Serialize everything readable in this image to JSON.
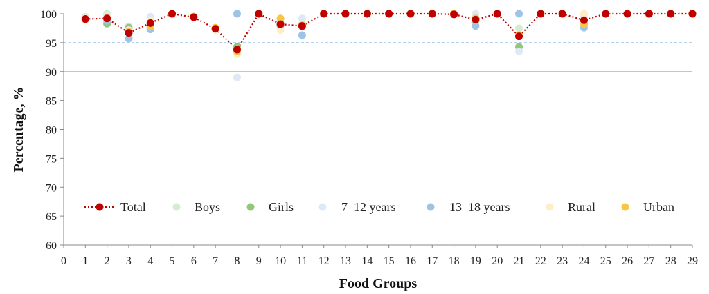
{
  "chart_data": {
    "type": "scatter",
    "title": "",
    "xlabel": "Food Groups",
    "ylabel": "Percentage, %",
    "xlim": [
      0,
      29
    ],
    "ylim": [
      60,
      100
    ],
    "x_ticks": [
      0,
      1,
      2,
      3,
      4,
      5,
      6,
      7,
      8,
      9,
      10,
      11,
      12,
      13,
      14,
      15,
      16,
      17,
      18,
      19,
      20,
      21,
      22,
      23,
      24,
      25,
      26,
      27,
      28,
      29
    ],
    "y_ticks": [
      60,
      65,
      70,
      75,
      80,
      85,
      90,
      95,
      100
    ],
    "reference_lines": [
      {
        "y": 95,
        "style": "dashed",
        "color": "#9dc3e6"
      },
      {
        "y": 90,
        "style": "solid",
        "color": "#9dc3e6"
      }
    ],
    "legend_position": "bottom-inside",
    "series": [
      {
        "name": "Boys",
        "color": "#d6ecd2",
        "x": [
          1,
          2,
          3,
          4,
          5,
          6,
          7,
          8,
          9,
          10,
          11,
          12,
          13,
          14,
          15,
          16,
          17,
          18,
          19,
          20,
          21,
          22,
          23,
          24,
          25,
          26,
          27,
          28,
          29
        ],
        "values": [
          99.5,
          100,
          97.8,
          99.3,
          100,
          99.5,
          97.5,
          94.2,
          100,
          98.5,
          98.2,
          100,
          100,
          100,
          100,
          100,
          100,
          100,
          99.3,
          100,
          97.5,
          100,
          100,
          98.8,
          100,
          100,
          100,
          100,
          100
        ]
      },
      {
        "name": "Girls",
        "color": "#92c77b",
        "x": [
          1,
          2,
          3,
          4,
          5,
          6,
          7,
          8,
          9,
          10,
          11,
          12,
          13,
          14,
          15,
          16,
          17,
          18,
          19,
          20,
          21,
          22,
          23,
          24,
          25,
          26,
          27,
          28,
          29
        ],
        "values": [
          99,
          98.3,
          97.6,
          97.5,
          100,
          99.5,
          97.3,
          94.3,
          100,
          98,
          97.8,
          100,
          100,
          100,
          100,
          100,
          100,
          100,
          98.8,
          100,
          94.3,
          100,
          100,
          98.8,
          100,
          100,
          100,
          100,
          100
        ]
      },
      {
        "name": "7–12 years",
        "color": "#dde9f6",
        "x": [
          1,
          2,
          3,
          4,
          5,
          6,
          7,
          8,
          9,
          10,
          11,
          12,
          13,
          14,
          15,
          16,
          17,
          18,
          19,
          20,
          21,
          22,
          23,
          24,
          25,
          26,
          27,
          28,
          29
        ],
        "values": [
          99.3,
          99.7,
          97.2,
          99.5,
          100,
          99.5,
          97.4,
          89,
          100,
          98.7,
          99.2,
          100,
          100,
          100,
          100,
          100,
          100,
          100,
          100,
          100,
          93.5,
          100,
          100,
          99.7,
          100,
          100,
          100,
          100,
          100
        ]
      },
      {
        "name": "13–18 years",
        "color": "#9dc3e6",
        "x": [
          1,
          2,
          3,
          4,
          5,
          6,
          7,
          8,
          9,
          10,
          11,
          12,
          13,
          14,
          15,
          16,
          17,
          18,
          19,
          20,
          21,
          22,
          23,
          24,
          25,
          26,
          27,
          28,
          29
        ],
        "values": [
          99,
          98.8,
          95.7,
          97.3,
          100,
          99.5,
          97.5,
          100,
          100,
          98,
          96.3,
          100,
          100,
          100,
          100,
          100,
          100,
          100,
          97.9,
          100,
          100,
          100,
          100,
          97.6,
          100,
          100,
          100,
          100,
          100
        ]
      },
      {
        "name": "Rural",
        "color": "#fdeec6",
        "x": [
          1,
          2,
          3,
          4,
          5,
          6,
          7,
          8,
          9,
          10,
          11,
          12,
          13,
          14,
          15,
          16,
          17,
          18,
          19,
          20,
          21,
          22,
          23,
          24,
          25,
          26,
          27,
          28,
          29
        ],
        "values": [
          99.2,
          99.2,
          96.7,
          98.8,
          100,
          99.5,
          97.2,
          93,
          100,
          97.2,
          98,
          100,
          100,
          100,
          100,
          100,
          100,
          100,
          99,
          100,
          96.2,
          100,
          100,
          100,
          100,
          100,
          100,
          100,
          100
        ]
      },
      {
        "name": "Urban",
        "color": "#f7c744",
        "x": [
          1,
          2,
          3,
          4,
          5,
          6,
          7,
          8,
          9,
          10,
          11,
          12,
          13,
          14,
          15,
          16,
          17,
          18,
          19,
          20,
          21,
          22,
          23,
          24,
          25,
          26,
          27,
          28,
          29
        ],
        "values": [
          99,
          99.3,
          96.9,
          97.8,
          100,
          99.5,
          97.6,
          93.5,
          100,
          99.2,
          98,
          100,
          100,
          100,
          100,
          100,
          100,
          100,
          99.2,
          100,
          96.3,
          100,
          100,
          98.2,
          100,
          100,
          100,
          100,
          100
        ]
      },
      {
        "name": "Total",
        "color": "#c00000",
        "line": "dotted",
        "x": [
          1,
          2,
          3,
          4,
          5,
          6,
          7,
          8,
          9,
          10,
          11,
          12,
          13,
          14,
          15,
          16,
          17,
          18,
          19,
          20,
          21,
          22,
          23,
          24,
          25,
          26,
          27,
          28,
          29
        ],
        "values": [
          99.1,
          99.2,
          96.7,
          98.4,
          100,
          99.4,
          97.4,
          93.8,
          100,
          98.2,
          97.9,
          100,
          100,
          100,
          100,
          100,
          100,
          99.9,
          99,
          100,
          96.1,
          100,
          100,
          98.9,
          100,
          100,
          100,
          100,
          100
        ]
      }
    ],
    "legend": [
      "Total",
      "Boys",
      "Girls",
      "7–12 years",
      "13–18 years",
      "Rural",
      "Urban"
    ]
  }
}
